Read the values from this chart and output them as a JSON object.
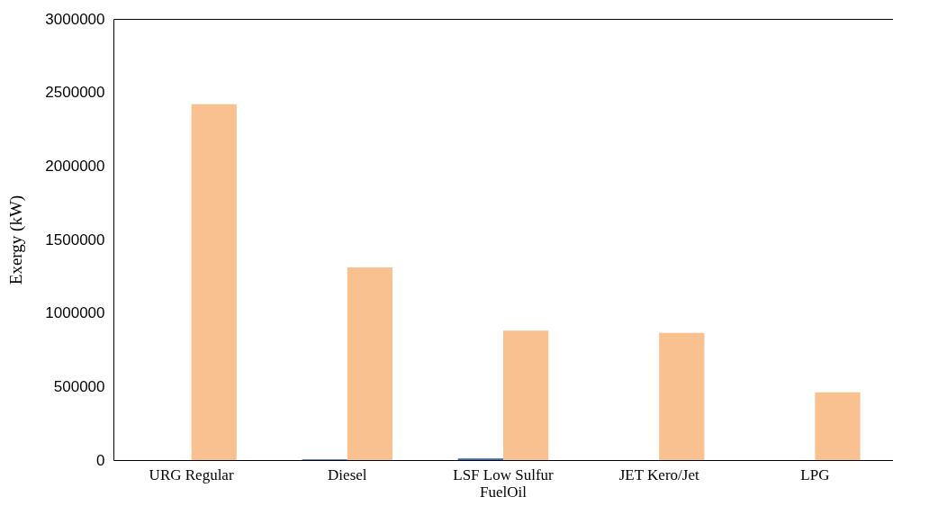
{
  "chart_data": {
    "type": "bar",
    "ylabel": "Exergy (kW)",
    "categories": [
      "URG Regular",
      "Diesel",
      "LSF Low Sulfur FuelOil",
      "JET Kero/Jet",
      "LPG"
    ],
    "series": [
      {
        "color": "#2e6bb5",
        "values": [
          null,
          4000,
          10000,
          null,
          null
        ]
      },
      {
        "color": "#f9c090",
        "values": [
          2420000,
          1310000,
          880000,
          865000,
          460000
        ]
      }
    ],
    "ylim": [
      0,
      3000000
    ],
    "yticks": [
      0,
      500000,
      1000000,
      1500000,
      2000000,
      2500000,
      3000000
    ],
    "grid": false,
    "legend": false
  }
}
